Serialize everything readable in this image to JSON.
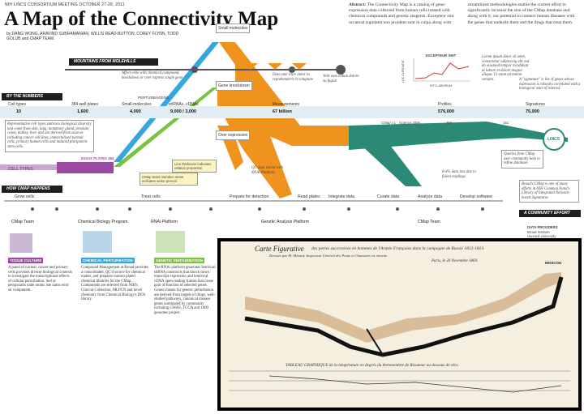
{
  "header": {
    "meeting": "NIH LINCS CONSORTIUM MEETING OCTOBER 27-28, 2011",
    "title": "A Map of the Connectivity Map",
    "authors_by": "by",
    "authors": "DANG WONG, ARAVIND SUBRAMANIAN, WILLIS READ-BUTTON, COREY FLYNN, TODD GOLUB and CMAP TEAM."
  },
  "abstract": {
    "label": "Abstract:",
    "text": "The Connectivity Map is a catalog of gene-expression data collected from human cells treated with chemical compounds and genetic reagents. Excepteur sint occaecat cupidatat non proident sunt in culpa along with streamlined methodologies enable the current effort to significantly increase the size of the CMap database and along with it, our potential to connect human diseases with the genes that underlie them and the drugs that treat them."
  },
  "banners": {
    "molehills": "MOUNTAINS FROM MOLEHILLS",
    "numbers": "BY THE NUMBERS",
    "how": "HOW CMAP HAPPENS",
    "community": "A COMMUNITY EFFORT"
  },
  "flow_labels": {
    "small_molecules": "Small molecules",
    "gene_knockdown": "Gene knockdown",
    "over_expression": "Over expression",
    "cell_types": "CELL TYPES"
  },
  "annotations": {
    "affect_cells": "Affect cells with chemical compound, knockdown or over express single gene.",
    "duis_aute": "Duis aute irure dolor in reprehenderit in voluptate",
    "velit_esse": "Velit esse cillum dolore eu fugiat",
    "exceptur_sint": "EXCEPTEUR SINT",
    "loc_cupidatat": "LOC CUPIDATAT",
    "est_laborum": "EST LABORUM",
    "lorem_ipsum": "Lorem ipsum dolor sit amet, consectetur adipiscing elit sed do eiusmod tempor incididunt ut labore et dolore magna aliqua. Ut enim ad minim veniam.",
    "signature_def": "A \"signature\" is list of genes whose expression is robustly correlated with a biological state of interest.",
    "representative": "Representative cell types embrace biological diversity and come from skin, lung, mammary gland, prostate, colon, kidney, liver and are derived from sources including cancer cell lines, immortalized normal cells, primary human cells and induced pluripotent stem cells.",
    "essay_plates": "ESSAY PLATES 384",
    "qc_data": "QC data stored with RNAi Platform",
    "line_thickness": "Line thickness indicates relative proportion",
    "cmap_team_memo": "CMap team member arrow indicates same person",
    "cmap_science": "CMap v.1 - Science 2006",
    "cmap_science_n1": "453",
    "cmap_science_n2": "161",
    "queries": "Queries from CMap user community help to refine database.",
    "data_loss": "8-4% data loss due to failed readings",
    "broad_cmap": "Broad's CMap is one of many efforts in NIH Common Fund's Library of Integrated Network-based Signatures",
    "lincs": "LINCS"
  },
  "numbers": {
    "headers": [
      "Cell types",
      "384 well plates",
      "Small-molecules",
      "shRNAs, cDNAs",
      "Measurements",
      "Profiles",
      "Signatures"
    ],
    "perturbagens": "PERTURBAGENS",
    "values": [
      "10",
      "1,600",
      "4,000",
      "9,000 / 3,000",
      "67 billion",
      "576,000",
      "75,000"
    ]
  },
  "stages": [
    "Grow cells",
    "Treat cells",
    "Prepare for detection",
    "Read plates",
    "Integrate data",
    "Curate data",
    "Analyze data",
    "Develop software"
  ],
  "teams": [
    {
      "name": "CMap Team",
      "tag": "TISSUE CULTURE",
      "desc": "A panel of normal, cancer and primary cells provides diverse biological contexts to investigate the transcriptional effects of cellular perturbation. Sed ut perspiciatis unde omnis iste natus error sit voluptatem."
    },
    {
      "name": "Chemical Biology Program",
      "tag": "CHEMICAL PERTURBATION",
      "desc": "Compound Management at Broad provides a consolidated, QC'd source for chemical matter, and prepares custom plated chemical libraries for the CMap. Compounds are selected from NIH's Clinical Collection, MLPCN and novel chemistry from Chemical Biology's DOS library."
    },
    {
      "name": "RNAi Platform",
      "tag": "GENETIC PERTURBATION",
      "desc": "The RNAi platform generates lentiviral shRNA constructs that knock down transcript expression and lentiviral cDNA open reading frames that cause gain of function of selected genes. Genes chosen for genetic perturbation are derived from targets of drugs, well-studied pathways, canonical disease genes nominated by community including GWAS, TCGA and 1000 genomes project."
    },
    {
      "name": "Genetic Analysis Platform",
      "tag": "",
      "desc": ""
    },
    {
      "name": "CMap Team",
      "tag": "",
      "desc": ""
    }
  ],
  "data_provider": {
    "label": "DATA PROVIDERS",
    "line1": "Broad Institute",
    "line2": "Harvard University"
  },
  "inset": {
    "title": "Carte Figurative",
    "subtitle": "des pertes successives en hommes de l'Armée Française dans la campagne de Russie 1812-1813.",
    "author": "Dressée par M. Minard, Inspecteur Général des Ponts et Chaussées en retraite.",
    "date": "Paris, le 20 Novembre 1869.",
    "moscou": "MOSCOU",
    "tableau": "TABLEAU GRAPHIQUE de la température en degrés du thermomètre de Réaumur au dessous de zéro."
  },
  "colors": {
    "orange": "#f0921e",
    "green": "#7cc242",
    "blue": "#35a7dc",
    "purple": "#9b4aa3",
    "teal": "#2b8a75",
    "tan": "#d9bd98"
  }
}
